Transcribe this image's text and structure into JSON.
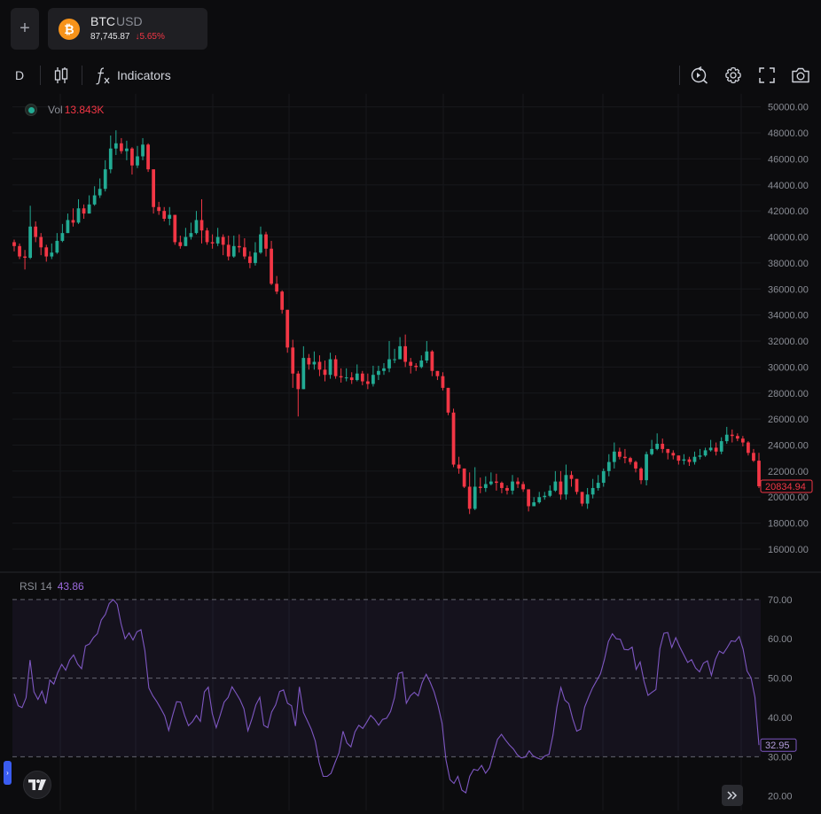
{
  "symbol": {
    "base": "BTC",
    "quote": "USD",
    "price": "87,745.87",
    "change": "↓5.65%",
    "coin_glyph": "₿"
  },
  "toolbar": {
    "interval": "D",
    "indicators_label": "Indicators",
    "add_glyph": "+"
  },
  "volume": {
    "label": "Vol",
    "value": "13.843K"
  },
  "rsi": {
    "label": "RSI 14",
    "value": "43.86",
    "last_label": "32.95"
  },
  "colors": {
    "up": "#22ab94",
    "down": "#f23645",
    "rsi": "#7e57c2",
    "background": "#0c0c0e"
  },
  "chart_data": [
    {
      "type": "candlestick",
      "title": "BTC USD",
      "interval": "D",
      "ylim": [
        14500,
        51000
      ],
      "y_ticks": [
        "50000.00",
        "48000.00",
        "46000.00",
        "44000.00",
        "42000.00",
        "40000.00",
        "38000.00",
        "36000.00",
        "34000.00",
        "32000.00",
        "30000.00",
        "28000.00",
        "26000.00",
        "24000.00",
        "22000.00",
        "20000.00",
        "18000.00",
        "16000.00"
      ],
      "last_price_label": "20834.94",
      "last_price": 20834.94,
      "close": [
        39300,
        38500,
        38400,
        40800,
        40000,
        39200,
        38500,
        38800,
        39700,
        40300,
        41300,
        41100,
        42200,
        41800,
        42500,
        43200,
        43700,
        45200,
        46800,
        47200,
        46600,
        46800,
        45500,
        46200,
        47100,
        45200,
        42300,
        42000,
        41400,
        41700,
        39600,
        39300,
        40000,
        40300,
        41300,
        40500,
        39600,
        39500,
        40000,
        39400,
        38500,
        39300,
        39200,
        38500,
        38000,
        38800,
        40200,
        39100,
        36400,
        35800,
        34400,
        31500,
        29500,
        28300,
        30700,
        30200,
        30400,
        29800,
        29400,
        30600,
        29300,
        29200,
        29200,
        29000,
        29500,
        28900,
        28700,
        29400,
        29700,
        29900,
        30600,
        30600,
        31600,
        30400,
        30100,
        30000,
        30500,
        31200,
        29700,
        29300,
        28400,
        26500,
        22500,
        22200,
        20800,
        19100,
        20800,
        20700,
        21000,
        21200,
        21100,
        20700,
        20500,
        21200,
        21000,
        20600,
        19300,
        19600,
        20000,
        20100,
        20500,
        21200,
        20200,
        21700,
        21400,
        20400,
        19500,
        20200,
        20700,
        21100,
        22000,
        22700,
        23500,
        23100,
        23000,
        22700,
        22200,
        21300,
        23300,
        23700,
        24100,
        23700,
        23400,
        23200,
        22800,
        22900,
        22700,
        23100,
        23200,
        23600,
        23800,
        23500,
        24300,
        24800,
        24700,
        24500,
        24200,
        23400,
        22800,
        20834.94
      ],
      "high": [
        39800,
        39500,
        39000,
        42400,
        41200,
        40300,
        39400,
        39500,
        40300,
        41000,
        41800,
        42200,
        42900,
        42500,
        43200,
        43900,
        44500,
        45900,
        47800,
        48200,
        47600,
        47400,
        46900,
        47000,
        47600,
        47200,
        44000,
        42700,
        42300,
        42300,
        41600,
        40100,
        40700,
        41100,
        42000,
        42900,
        40700,
        40200,
        40700,
        40200,
        40100,
        40100,
        40200,
        39900,
        38900,
        39600,
        40800,
        40400,
        39700,
        37000,
        35900,
        34200,
        32100,
        29700,
        31600,
        31000,
        31200,
        30900,
        30500,
        31100,
        30900,
        29900,
        29900,
        29600,
        30200,
        29700,
        29500,
        30100,
        30100,
        30300,
        32000,
        31400,
        32300,
        32500,
        30700,
        30300,
        30900,
        32000,
        31300,
        29700,
        29600,
        28400,
        26800,
        23100,
        22200,
        21900,
        22300,
        21500,
        21600,
        21900,
        21800,
        21200,
        20900,
        21700,
        21500,
        21200,
        20600,
        20000,
        20400,
        20400,
        20900,
        22000,
        22000,
        22500,
        22000,
        21400,
        20400,
        20700,
        21400,
        21700,
        22200,
        23300,
        24200,
        23800,
        23700,
        23100,
        22800,
        22300,
        23500,
        24400,
        24900,
        24500,
        23700,
        23600,
        23200,
        23300,
        23100,
        23500,
        23700,
        23800,
        24400,
        24200,
        24600,
        25400,
        25200,
        24900,
        24700,
        24300,
        23700,
        23400
      ],
      "low": [
        38900,
        38300,
        37500,
        38300,
        39600,
        38600,
        38100,
        38300,
        38700,
        39600,
        40500,
        40800,
        41000,
        41400,
        41800,
        42400,
        43000,
        43500,
        44900,
        46300,
        46400,
        45900,
        44800,
        45300,
        45900,
        45000,
        41800,
        41700,
        41200,
        40900,
        39400,
        39100,
        39300,
        39800,
        40200,
        39500,
        39400,
        39100,
        39300,
        38600,
        38200,
        38400,
        38800,
        38300,
        37600,
        37800,
        38700,
        38500,
        36300,
        35600,
        34100,
        31100,
        28400,
        26200,
        28900,
        29800,
        29800,
        29300,
        28900,
        29100,
        29100,
        28800,
        28900,
        28700,
        28900,
        28600,
        28300,
        28500,
        29000,
        29400,
        29600,
        30300,
        30600,
        30000,
        29500,
        29700,
        29900,
        30300,
        29300,
        29000,
        28200,
        26300,
        22300,
        21800,
        20700,
        18700,
        19000,
        20300,
        20400,
        20900,
        20500,
        20300,
        20200,
        20200,
        20700,
        20400,
        18900,
        19300,
        19500,
        19800,
        20000,
        20400,
        19800,
        19800,
        20800,
        20200,
        19300,
        19100,
        19900,
        20500,
        20800,
        21600,
        22200,
        22900,
        22600,
        22500,
        21900,
        21000,
        20900,
        23200,
        23600,
        23400,
        22900,
        22900,
        22500,
        22500,
        22400,
        22500,
        22900,
        23100,
        23500,
        23200,
        23300,
        24100,
        24200,
        24300,
        23900,
        23200,
        22700,
        20700
      ]
    },
    {
      "type": "line",
      "title": "RSI 14",
      "ylim": [
        17,
        72
      ],
      "y_ticks": [
        "70.00",
        "60.00",
        "50.00",
        "40.00",
        "30.00",
        "20.00"
      ],
      "bands": [
        70,
        50,
        30
      ],
      "values": [
        46,
        43,
        42.5,
        45,
        54.6,
        46.5,
        44.6,
        46.7,
        43.5,
        49.5,
        48.5,
        51.4,
        53.5,
        52,
        54.6,
        55.9,
        53.6,
        52.4,
        58.2,
        58.7,
        60.3,
        61.3,
        64.8,
        66.2,
        69,
        70,
        68.8,
        63.8,
        60,
        61.5,
        59.7,
        61.8,
        62.3,
        57,
        47.5,
        45.5,
        44,
        42.3,
        40.4,
        36.7,
        40.5,
        44,
        43.9,
        40.6,
        37.9,
        38.9,
        40.5,
        39,
        46.5,
        47.7,
        41,
        37.4,
        40.5,
        43.9,
        45.1,
        47.8,
        46.2,
        44.5,
        42.2,
        36.6,
        39.6,
        43.2,
        45.1,
        38,
        37.4,
        41.4,
        43.2,
        46.6,
        47,
        43.6,
        43,
        37.8,
        47.8,
        41.3,
        39.2,
        37,
        34,
        28.5,
        25,
        25,
        25.8,
        28.5,
        31,
        36.5,
        33.5,
        32.5,
        36.3,
        38,
        37.2,
        38.8,
        40.5,
        39.5,
        38,
        39.5,
        39.8,
        41.5,
        45,
        51.2,
        51.5,
        43.6,
        45.5,
        46.4,
        45.5,
        48.9,
        51,
        49,
        46.5,
        43,
        38.5,
        29.2,
        24.2,
        23.2,
        25,
        21.5,
        20.8,
        25,
        26.8,
        26.5,
        27.8,
        25.8,
        27.2,
        30.8,
        34.4,
        35.7,
        34.3,
        33,
        32,
        30.5,
        29.7,
        29.9,
        31.5,
        30.2,
        29.7,
        29.3,
        30.2,
        30.6,
        35.5,
        42.6,
        47.6,
        44.4,
        43.5,
        39.6,
        36.5,
        37,
        42.6,
        45.2,
        47.5,
        49.3,
        51.1,
        54.7,
        59.3,
        61.3,
        60,
        59.9,
        57.3,
        57.2,
        57.9,
        52.2,
        54.1,
        49.2,
        45.6,
        46.4,
        47.1,
        57.5,
        61.4,
        61.6,
        57.8,
        60.3,
        58,
        56,
        54,
        54.7,
        52.6,
        51.6,
        53.8,
        54.4,
        50.7,
        54.7,
        56.9,
        56.3,
        57.8,
        59.5,
        59.3,
        60.6,
        57.4,
        51.8,
        50.1,
        45.1,
        32.95
      ]
    }
  ]
}
